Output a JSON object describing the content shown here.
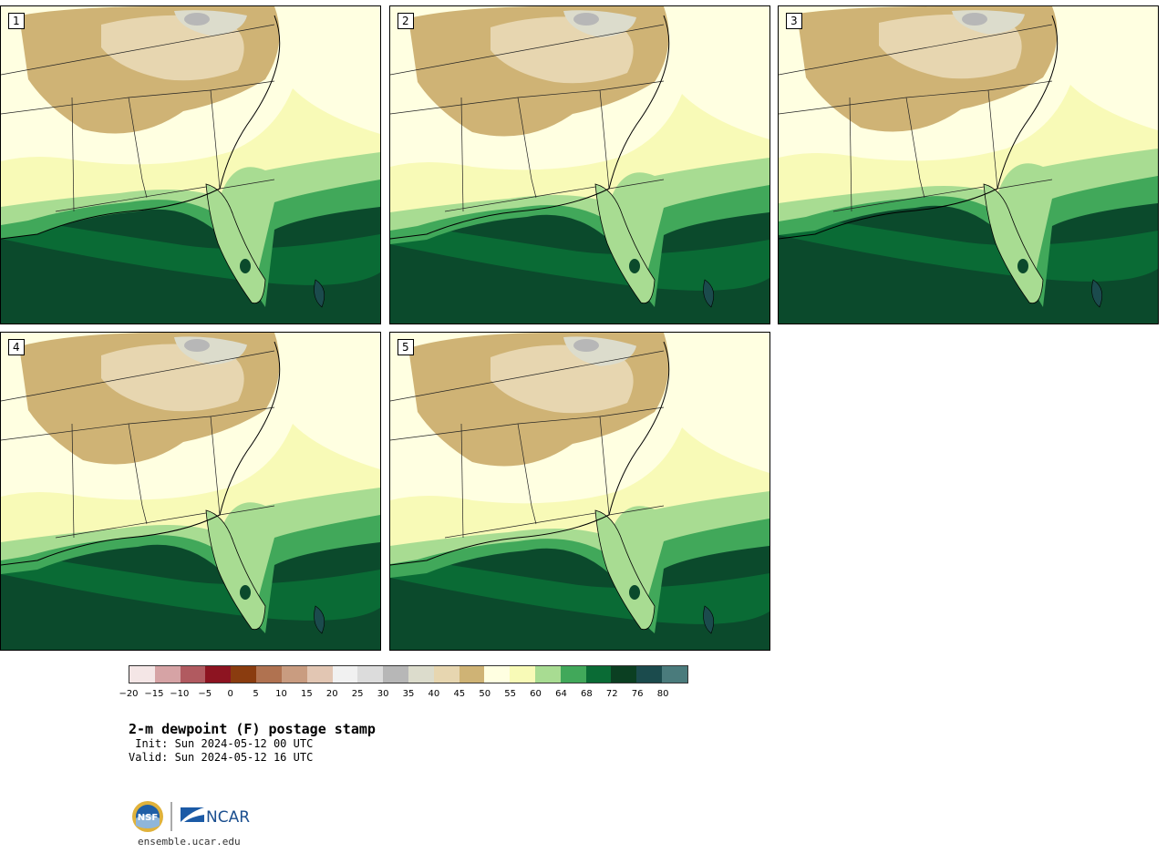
{
  "members": [
    {
      "label": "1"
    },
    {
      "label": "2"
    },
    {
      "label": "3"
    },
    {
      "label": "4"
    },
    {
      "label": "5"
    }
  ],
  "colorbar": {
    "colors": [
      "#f4e6e6",
      "#d6a3a5",
      "#b15a60",
      "#8d1421",
      "#8a3c0f",
      "#b07250",
      "#c99c80",
      "#e2c6b3",
      "#f1f1f1",
      "#dcdcdc",
      "#b7b7b7",
      "#dcdccc",
      "#e7d6b0",
      "#cfb375",
      "#ffffe1",
      "#f8fab7",
      "#a8dc92",
      "#41a85a",
      "#0a6b35",
      "#0b3f22",
      "#1b4b4d",
      "#4a7b7c"
    ],
    "tick_labels": [
      "−20",
      "−15",
      "−10",
      "−5",
      "0",
      "5",
      "10",
      "15",
      "20",
      "25",
      "30",
      "35",
      "40",
      "45",
      "50",
      "55",
      "60",
      "64",
      "68",
      "72",
      "76",
      "80"
    ]
  },
  "title": "2-m dewpoint (F) postage stamp",
  "init_text": " Init: Sun 2024-05-12 00 UTC",
  "valid_text": "Valid: Sun 2024-05-12 16 UTC",
  "logo": {
    "nsf_text": "NSF",
    "ncar_text": "NCAR"
  },
  "url": "ensemble.ucar.edu"
}
